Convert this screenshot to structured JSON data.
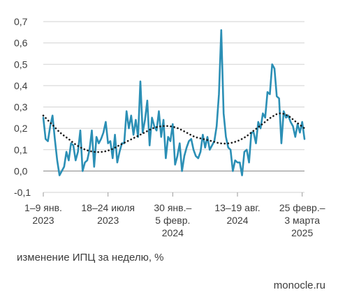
{
  "chart_data": {
    "type": "line",
    "ylim": [
      -0.1,
      0.7
    ],
    "yticks": [
      "-0,1",
      "0,0",
      "0,1",
      "0,2",
      "0,3",
      "0,4",
      "0,5",
      "0,6",
      "0,7"
    ],
    "ytick_values": [
      -0.1,
      0.0,
      0.1,
      0.2,
      0.3,
      0.4,
      0.5,
      0.6,
      0.7
    ],
    "xtick_labels": [
      [
        "1–9 янв.",
        "2023"
      ],
      [
        "18–24 июля",
        "2023"
      ],
      [
        "30 янв.–",
        "5 февр.",
        "2024"
      ],
      [
        "13–19 авг.",
        "2024"
      ],
      [
        "25 февр.–",
        "3 марта",
        "2025"
      ]
    ],
    "xtick_weeks": [
      0,
      28,
      56,
      84,
      112
    ],
    "grid": "horizontal",
    "colors": {
      "series": "#2b8fb5",
      "trend": "#1a1a1a",
      "grid": "#d2d2d2",
      "zero": "#9a9a9a"
    },
    "series": [
      {
        "style": "solid",
        "values": [
          0.25,
          0.15,
          0.14,
          0.21,
          0.26,
          0.15,
          0.05,
          -0.02,
          0.0,
          0.02,
          0.09,
          0.05,
          0.13,
          0.12,
          0.05,
          0.09,
          0.19,
          0.0,
          0.04,
          0.05,
          0.1,
          0.19,
          0.02,
          0.16,
          0.13,
          0.15,
          0.18,
          0.23,
          0.13,
          0.14,
          0.06,
          0.17,
          0.04,
          0.09,
          0.13,
          0.13,
          0.28,
          0.2,
          0.26,
          0.17,
          0.24,
          0.16,
          0.42,
          0.18,
          0.24,
          0.33,
          0.12,
          0.25,
          0.21,
          0.19,
          0.28,
          0.16,
          0.24,
          0.06,
          0.16,
          0.14,
          0.22,
          0.03,
          0.07,
          0.13,
          0.0,
          0.07,
          0.11,
          0.14,
          0.15,
          0.1,
          0.07,
          0.06,
          0.09,
          0.17,
          0.11,
          0.16,
          0.1,
          0.12,
          0.14,
          0.21,
          0.36,
          0.66,
          0.27,
          0.16,
          0.11,
          0.1,
          0.0,
          0.05,
          0.04,
          0.04,
          -0.02,
          0.09,
          0.1,
          0.04,
          0.18,
          0.18,
          0.13,
          0.23,
          0.2,
          0.27,
          0.25,
          0.37,
          0.36,
          0.5,
          0.48,
          0.35,
          0.34,
          0.13,
          0.28,
          0.25,
          0.26,
          0.23,
          0.21,
          0.16,
          0.22,
          0.18,
          0.23,
          0.15
        ]
      },
      {
        "style": "dotted",
        "values": [
          0.26,
          0.22,
          0.18,
          0.15,
          0.12,
          0.1,
          0.09,
          0.09,
          0.1,
          0.12,
          0.14,
          0.16,
          0.18,
          0.2,
          0.21,
          0.21,
          0.2,
          0.18,
          0.16,
          0.15,
          0.14,
          0.13,
          0.13,
          0.14,
          0.16,
          0.19,
          0.22,
          0.25,
          0.27,
          0.26,
          0.23,
          0.2
        ],
        "note_x_step": 3.6
      }
    ]
  },
  "caption": "изменение ИПЦ за неделю, %",
  "source": "monocle.ru"
}
